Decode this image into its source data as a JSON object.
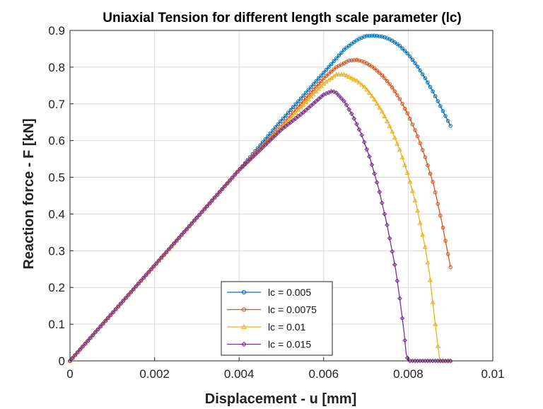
{
  "chart_data": {
    "type": "line",
    "title": "Uniaxial Tension for different length scale parameter (lc)",
    "xlabel": "Displacement - u [mm]",
    "ylabel": "Reaction force - F [kN]",
    "xlim": [
      0,
      0.01
    ],
    "ylim": [
      0,
      0.9
    ],
    "xticks": [
      "0",
      "0.002",
      "0.004",
      "0.006",
      "0.008",
      "0.01"
    ],
    "yticks": [
      "0",
      "0.1",
      "0.2",
      "0.3",
      "0.4",
      "0.5",
      "0.6",
      "0.7",
      "0.8",
      "0.9"
    ],
    "grid": true,
    "legend_position": "bottom-center",
    "series": [
      {
        "name": "lc = 0.005",
        "color": "#0072BD",
        "marker": "circle",
        "x": [
          0,
          0.001,
          0.002,
          0.003,
          0.004,
          0.005,
          0.0055,
          0.006,
          0.0065,
          0.0068,
          0.007,
          0.0072,
          0.0074,
          0.0076,
          0.0078,
          0.008,
          0.0082,
          0.0084,
          0.0086,
          0.0088,
          0.009
        ],
        "y": [
          0,
          0.13,
          0.26,
          0.39,
          0.52,
          0.655,
          0.72,
          0.785,
          0.85,
          0.875,
          0.885,
          0.886,
          0.883,
          0.874,
          0.858,
          0.835,
          0.805,
          0.77,
          0.73,
          0.685,
          0.64
        ]
      },
      {
        "name": "lc = 0.0075",
        "color": "#D95319",
        "marker": "circle",
        "x": [
          0,
          0.001,
          0.002,
          0.003,
          0.004,
          0.005,
          0.0055,
          0.006,
          0.0063,
          0.0066,
          0.0068,
          0.007,
          0.0072,
          0.0074,
          0.0076,
          0.0078,
          0.008,
          0.0082,
          0.0084,
          0.0086,
          0.0088,
          0.009
        ],
        "y": [
          0,
          0.13,
          0.26,
          0.39,
          0.52,
          0.64,
          0.705,
          0.77,
          0.8,
          0.818,
          0.82,
          0.812,
          0.797,
          0.776,
          0.748,
          0.713,
          0.67,
          0.618,
          0.555,
          0.48,
          0.375,
          0.255
        ]
      },
      {
        "name": "lc = 0.01",
        "color": "#EDB120",
        "marker": "triangle",
        "x": [
          0,
          0.001,
          0.002,
          0.003,
          0.004,
          0.005,
          0.0055,
          0.006,
          0.0063,
          0.0065,
          0.0068,
          0.007,
          0.0072,
          0.0074,
          0.0076,
          0.0078,
          0.008,
          0.0082,
          0.0084,
          0.0085,
          0.0086,
          0.0087,
          0.00875,
          0.0088,
          0.009
        ],
        "y": [
          0,
          0.13,
          0.26,
          0.39,
          0.52,
          0.635,
          0.695,
          0.755,
          0.78,
          0.78,
          0.762,
          0.742,
          0.712,
          0.675,
          0.63,
          0.575,
          0.505,
          0.42,
          0.31,
          0.24,
          0.14,
          0.04,
          0,
          0,
          0
        ]
      },
      {
        "name": "lc = 0.015",
        "color": "#7E2F8E",
        "marker": "diamond",
        "x": [
          0,
          0.001,
          0.002,
          0.003,
          0.004,
          0.005,
          0.0055,
          0.006,
          0.0062,
          0.0063,
          0.0065,
          0.0067,
          0.0069,
          0.0071,
          0.0073,
          0.0075,
          0.0077,
          0.0078,
          0.0079,
          0.00795,
          0.008,
          0.009
        ],
        "y": [
          0,
          0.13,
          0.26,
          0.39,
          0.52,
          0.63,
          0.675,
          0.725,
          0.735,
          0.73,
          0.705,
          0.665,
          0.615,
          0.55,
          0.47,
          0.37,
          0.25,
          0.17,
          0.08,
          0.02,
          0,
          0
        ]
      }
    ]
  }
}
